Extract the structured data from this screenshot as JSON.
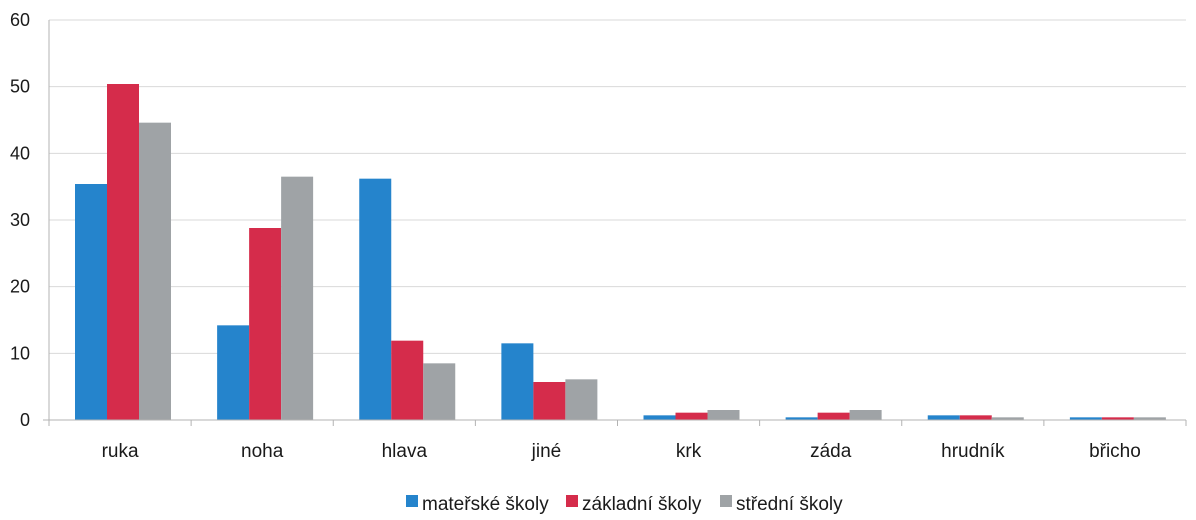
{
  "chart_data": {
    "type": "bar",
    "categories": [
      "ruka",
      "noha",
      "hlava",
      "jiné",
      "krk",
      "záda",
      "hrudník",
      "břicho"
    ],
    "series": [
      {
        "name": "mateřské školy",
        "color": "#2584cc",
        "values": [
          35.4,
          14.2,
          36.2,
          11.5,
          0.7,
          0.4,
          0.7,
          0.4
        ]
      },
      {
        "name": "základní školy",
        "color": "#d52c4b",
        "values": [
          50.4,
          28.8,
          11.9,
          5.7,
          1.1,
          1.1,
          0.7,
          0.4
        ]
      },
      {
        "name": "střední školy",
        "color": "#9fa3a6",
        "values": [
          44.6,
          36.5,
          8.5,
          6.1,
          1.5,
          1.5,
          0.4,
          0.4
        ]
      }
    ],
    "y_ticks": [
      "0",
      "10",
      "20",
      "30",
      "40",
      "50",
      "60"
    ],
    "ylim": [
      0,
      60
    ],
    "grid": true,
    "legend_position": "bottom-center",
    "gridline_color": "#d9d9d9",
    "axis_color": "#b3b3b3"
  }
}
